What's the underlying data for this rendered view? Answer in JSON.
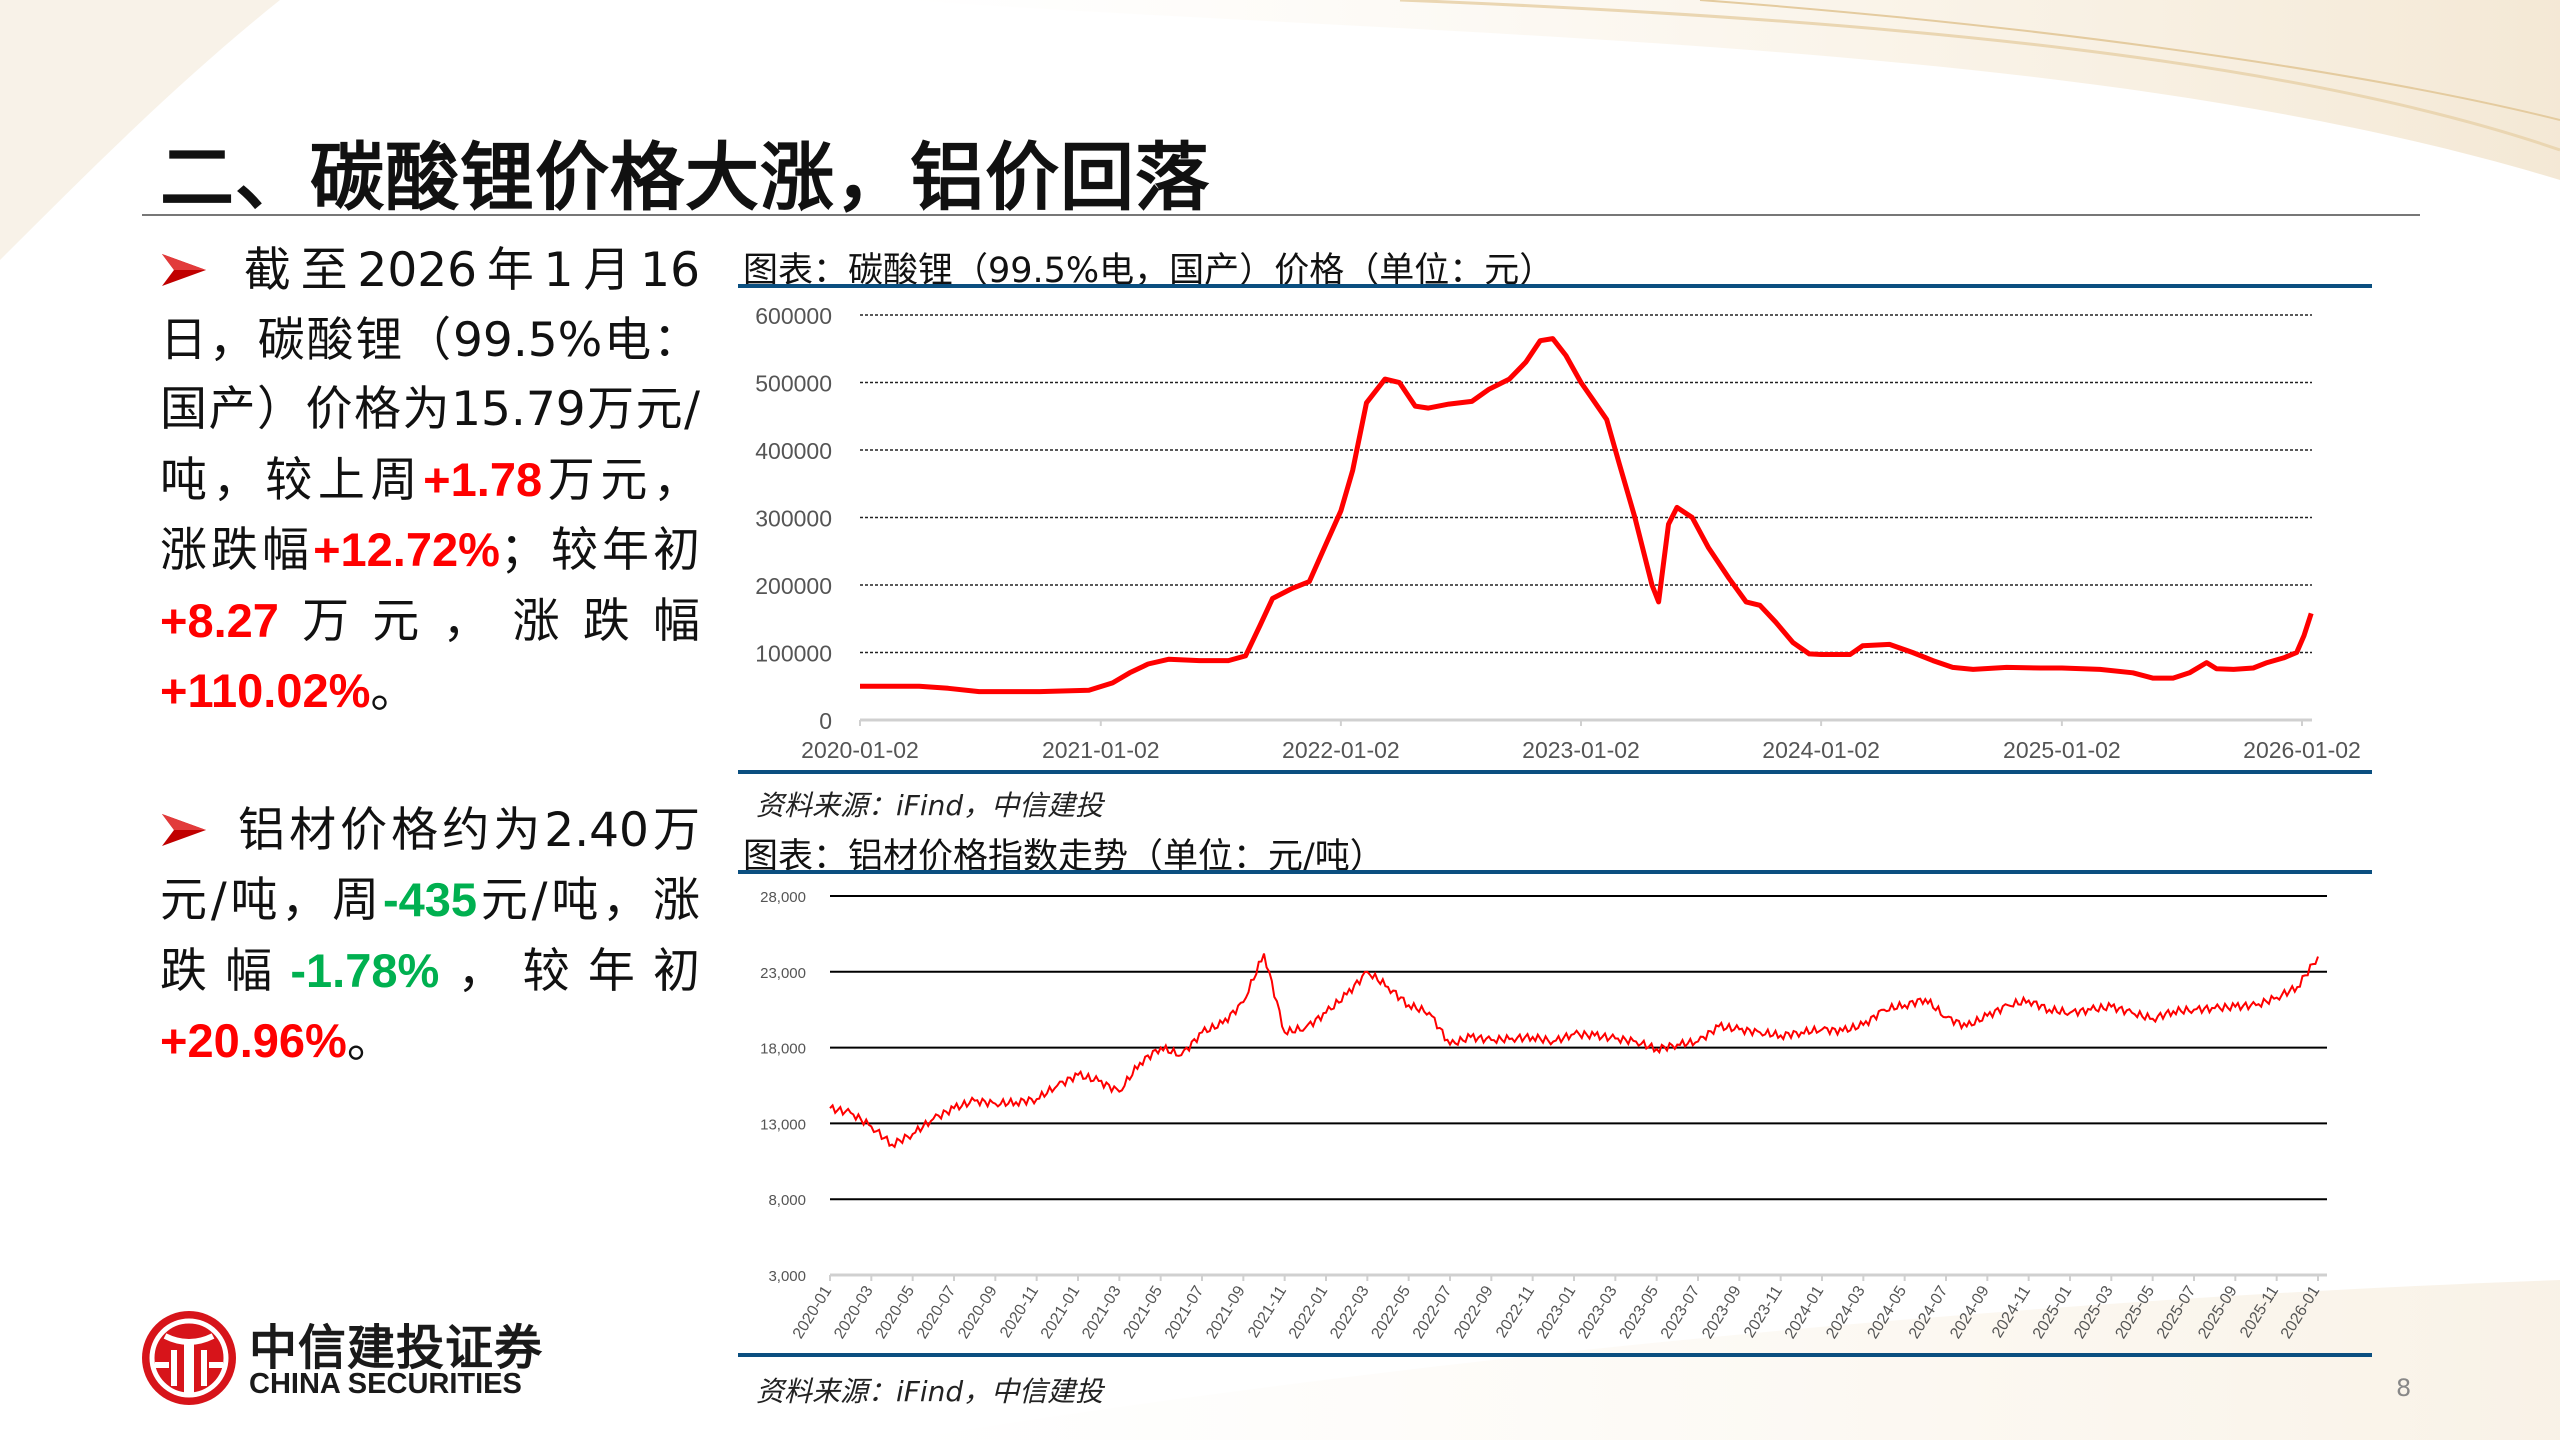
{
  "title": "二、碳酸锂价格大涨，铝价回落",
  "bullets": [
    {
      "segments": [
        {
          "text": "截至2026年1月16日，碳酸锂（99.5%电：国产）价格为15.79万元/吨，较上周",
          "tone": "normal"
        },
        {
          "text": "+1.78",
          "tone": "red"
        },
        {
          "text": "万元，涨跌幅",
          "tone": "normal"
        },
        {
          "text": "+12.72%",
          "tone": "red"
        },
        {
          "text": "；较年初",
          "tone": "normal"
        },
        {
          "text": "+8.27",
          "tone": "red"
        },
        {
          "text": "万元，涨跌幅",
          "tone": "normal"
        },
        {
          "text": "+110.02%",
          "tone": "red"
        },
        {
          "text": "。",
          "tone": "normal"
        }
      ]
    },
    {
      "segments": [
        {
          "text": "铝材价格约为2.40万元/吨，周",
          "tone": "normal"
        },
        {
          "text": "-435",
          "tone": "green"
        },
        {
          "text": "元/吨，涨跌幅",
          "tone": "normal"
        },
        {
          "text": "-1.78%",
          "tone": "green"
        },
        {
          "text": "，较年初",
          "tone": "normal"
        },
        {
          "text": "+20.96%",
          "tone": "red"
        },
        {
          "text": "。",
          "tone": "normal"
        }
      ]
    }
  ],
  "colors": {
    "up": "#ff0000",
    "down": "#00b050",
    "rule": "#0b4f80",
    "series": "#ff0000",
    "bullet_icon": "#c00000"
  },
  "charts": [
    {
      "title": "图表：碳酸锂（99.5%电，国产）价格（单位：元）",
      "source": "资料来源：iFind，中信建投"
    },
    {
      "title": "图表：铝材价格指数走势（单位：元/吨）",
      "source": "资料来源：iFind，中信建投"
    }
  ],
  "chart_data": [
    {
      "type": "line",
      "title": "图表：碳酸锂（99.5%电，国产）价格（单位：元）",
      "ylim": [
        0,
        600000
      ],
      "yticks": [
        "0",
        "100000",
        "200000",
        "300000",
        "400000",
        "500000",
        "600000"
      ],
      "xticks": [
        "2020-01-02",
        "2021-01-02",
        "2022-01-02",
        "2023-01-02",
        "2024-01-02",
        "2025-01-02",
        "2026-01-02"
      ],
      "grid": "horizontal dashed",
      "series": [
        {
          "x": [
            "2020-01-02",
            "2020-04-01",
            "2020-05-15",
            "2020-07-01",
            "2020-10-01",
            "2020-12-15",
            "2021-01-20",
            "2021-02-15",
            "2021-03-15",
            "2021-04-15",
            "2021-06-01",
            "2021-07-15",
            "2021-08-10",
            "2021-09-01",
            "2021-09-20",
            "2021-10-20",
            "2021-11-15",
            "2021-12-10",
            "2022-01-02",
            "2022-01-20",
            "2022-02-10",
            "2022-03-10",
            "2022-04-01",
            "2022-04-25",
            "2022-05-15",
            "2022-06-15",
            "2022-07-20",
            "2022-08-15",
            "2022-09-15",
            "2022-10-10",
            "2022-11-01",
            "2022-11-20",
            "2022-12-10",
            "2023-01-02",
            "2023-01-20",
            "2023-02-10",
            "2023-03-01",
            "2023-03-25",
            "2023-04-20",
            "2023-04-30",
            "2023-05-15",
            "2023-05-28",
            "2023-06-20",
            "2023-07-15",
            "2023-08-15",
            "2023-09-10",
            "2023-10-01",
            "2023-10-25",
            "2023-11-20",
            "2023-12-15",
            "2024-01-02",
            "2024-02-15",
            "2024-03-05",
            "2024-04-15",
            "2024-05-20",
            "2024-06-20",
            "2024-07-20",
            "2024-08-20",
            "2024-10-10",
            "2024-12-01",
            "2025-01-02",
            "2025-03-01",
            "2025-04-20",
            "2025-05-20",
            "2025-06-20",
            "2025-07-15",
            "2025-08-10",
            "2025-08-25",
            "2025-09-20",
            "2025-10-20",
            "2025-11-10",
            "2025-12-05",
            "2025-12-25",
            "2026-01-05",
            "2026-01-16"
          ],
          "y": [
            50000,
            50000,
            47000,
            42000,
            42000,
            44000,
            55000,
            70000,
            83000,
            90000,
            88000,
            88000,
            95000,
            140000,
            180000,
            195000,
            205000,
            260000,
            310000,
            370000,
            470000,
            505000,
            500000,
            465000,
            462000,
            468000,
            472000,
            490000,
            505000,
            530000,
            562000,
            565000,
            540000,
            500000,
            475000,
            445000,
            380000,
            300000,
            200000,
            175000,
            290000,
            315000,
            300000,
            255000,
            210000,
            175000,
            170000,
            145000,
            115000,
            98000,
            97000,
            97000,
            110000,
            112000,
            100000,
            88000,
            78000,
            75000,
            78000,
            77000,
            77000,
            75000,
            70000,
            62000,
            62000,
            70000,
            85000,
            76000,
            75000,
            77000,
            85000,
            92000,
            100000,
            125000,
            157900
          ]
        }
      ]
    },
    {
      "type": "line",
      "title": "图表：铝材价格指数走势（单位：元/吨）",
      "ylim": [
        3000,
        28000
      ],
      "yticks": [
        "3,000",
        "8,000",
        "13,000",
        "18,000",
        "23,000",
        "28,000"
      ],
      "xticks": [
        "2020-01",
        "2020-03",
        "2020-05",
        "2020-07",
        "2020-09",
        "2020-11",
        "2021-01",
        "2021-03",
        "2021-05",
        "2021-07",
        "2021-09",
        "2021-11",
        "2022-01",
        "2022-03",
        "2022-05",
        "2022-07",
        "2022-09",
        "2022-11",
        "2023-01",
        "2023-03",
        "2023-05",
        "2023-07",
        "2023-09",
        "2023-11",
        "2024-01",
        "2024-03",
        "2024-05",
        "2024-07",
        "2024-09",
        "2024-11",
        "2025-01",
        "2025-03",
        "2025-05",
        "2025-07",
        "2025-09",
        "2025-11",
        "2026-01"
      ],
      "grid": "horizontal solid",
      "series": [
        {
          "x": [
            "2020-01",
            "2020-02",
            "2020-03",
            "2020-04",
            "2020-05",
            "2020-06",
            "2020-07",
            "2020-08",
            "2020-09",
            "2020-10",
            "2020-11",
            "2020-12",
            "2021-01",
            "2021-02",
            "2021-03",
            "2021-04",
            "2021-05",
            "2021-06",
            "2021-07",
            "2021-08",
            "2021-09",
            "2021-10",
            "2021-11",
            "2021-12",
            "2022-01",
            "2022-02",
            "2022-03",
            "2022-04",
            "2022-05",
            "2022-06",
            "2022-07",
            "2022-08",
            "2022-09",
            "2022-10",
            "2022-11",
            "2022-12",
            "2023-01",
            "2023-02",
            "2023-03",
            "2023-04",
            "2023-05",
            "2023-06",
            "2023-07",
            "2023-08",
            "2023-09",
            "2023-10",
            "2023-11",
            "2023-12",
            "2024-01",
            "2024-02",
            "2024-03",
            "2024-04",
            "2024-05",
            "2024-06",
            "2024-07",
            "2024-08",
            "2024-09",
            "2024-10",
            "2024-11",
            "2024-12",
            "2025-01",
            "2025-02",
            "2025-03",
            "2025-04",
            "2025-05",
            "2025-06",
            "2025-07",
            "2025-08",
            "2025-09",
            "2025-10",
            "2025-11",
            "2025-12",
            "2026-01"
          ],
          "y": [
            14000,
            13700,
            12800,
            11600,
            12300,
            13300,
            14000,
            14500,
            14300,
            14400,
            14600,
            15500,
            16200,
            15800,
            15100,
            17000,
            18000,
            17500,
            19000,
            19600,
            21000,
            24200,
            19000,
            19300,
            20300,
            21500,
            23000,
            22000,
            20800,
            20300,
            18200,
            18700,
            18500,
            18600,
            18700,
            18400,
            18900,
            18800,
            18600,
            18400,
            17900,
            18200,
            18400,
            19400,
            19200,
            19000,
            18800,
            19000,
            19200,
            19100,
            19500,
            20500,
            20800,
            21200,
            20000,
            19400,
            20100,
            20800,
            21100,
            20500,
            20300,
            20500,
            20700,
            20300,
            19900,
            20400,
            20500,
            20600,
            20700,
            20800,
            21300,
            22000,
            24000
          ]
        }
      ]
    }
  ],
  "logo": {
    "cn": "中信建投证券",
    "en": "CHINA SECURITIES"
  },
  "page_number": "8"
}
